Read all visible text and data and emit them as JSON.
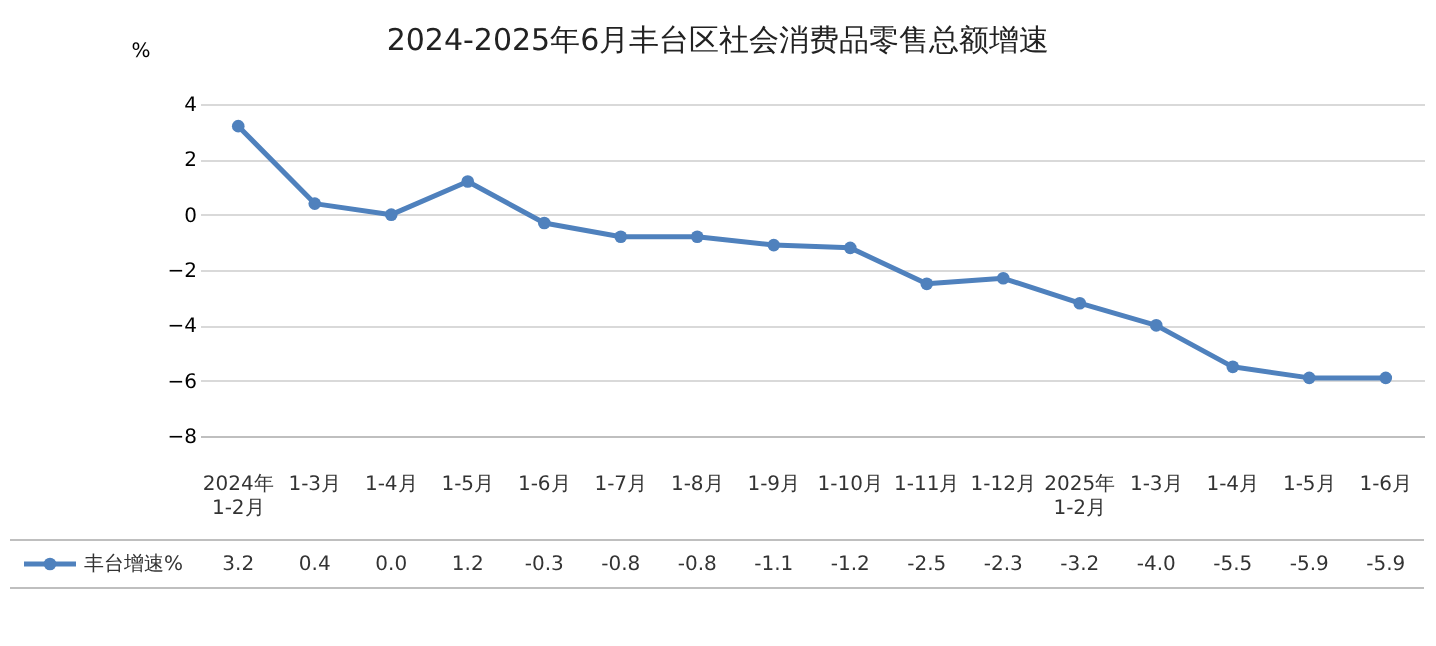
{
  "chart_data": {
    "type": "line",
    "title": "2024-2025年6月丰台区社会消费品零售总额增速",
    "ylabel": "%",
    "categories": [
      "2024年\n1-2月",
      "1-3月",
      "1-4月",
      "1-5月",
      "1-6月",
      "1-7月",
      "1-8月",
      "1-9月",
      "1-10月",
      "1-11月",
      "1-12月",
      "2025年\n1-2月",
      "1-3月",
      "1-4月",
      "1-5月",
      "1-6月"
    ],
    "series": [
      {
        "name": "丰台增速%",
        "color": "#4f81bd",
        "values": [
          3.2,
          0.4,
          0.0,
          1.2,
          -0.3,
          -0.8,
          -0.8,
          -1.1,
          -1.2,
          -2.5,
          -2.3,
          -3.2,
          -4.0,
          -5.5,
          -5.9,
          -5.9
        ],
        "value_labels": [
          "3.2",
          "0.4",
          "0.0",
          "1.2",
          "-0.3",
          "-0.8",
          "-0.8",
          "-1.1",
          "-1.2",
          "-2.5",
          "-2.3",
          "-3.2",
          "-4.0",
          "-5.5",
          "-5.9",
          "-5.9"
        ]
      }
    ],
    "ylim": [
      -8,
      4
    ],
    "yticks": [
      -8,
      -6,
      -4,
      -2,
      0,
      2,
      4
    ],
    "grid": "y",
    "legend": "bottom",
    "marker": "circle",
    "line_style": "solid"
  }
}
